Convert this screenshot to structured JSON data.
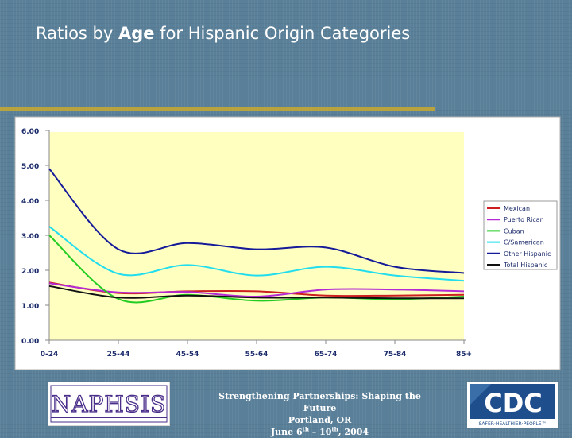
{
  "slide": {
    "title_before": "Ratios by ",
    "title_emph": "Age",
    "title_after": " for Hispanic Origin Categories",
    "footer_line1": "Strengthening Partnerships: Shaping the Future",
    "footer_line2": "Portland, OR",
    "footer_line3_a": "June 6",
    "footer_line3_sup1": "th",
    "footer_line3_b": " – 10",
    "footer_line3_sup2": "th",
    "footer_line3_c": ", 2004",
    "logo_left_text": "NAPHSIS",
    "logo_right_text": "CDC",
    "logo_right_tagline": "SAFER·HEALTHIER·PEOPLE™"
  },
  "colors": {
    "background": "#5a7f98",
    "plot_area": "#ffffc0",
    "chart_frame": "#ffffff",
    "gold_rule": "#b8a33e",
    "cdc_blue": "#1f4e8c",
    "naphsis_purple": "#4a2e8a"
  },
  "chart_data": {
    "type": "line",
    "title": "",
    "xlabel": "",
    "ylabel": "",
    "ylim": [
      0,
      6
    ],
    "yticks": [
      "0.00",
      "1.00",
      "2.00",
      "3.00",
      "4.00",
      "5.00",
      "6.00"
    ],
    "categories": [
      "0-24",
      "25-44",
      "45-54",
      "55-64",
      "65-74",
      "75-84",
      "85+"
    ],
    "grid": false,
    "legend_position": "right",
    "series": [
      {
        "name": "Mexican",
        "color": "#cc1f1f",
        "values": [
          1.65,
          1.35,
          1.4,
          1.4,
          1.28,
          1.28,
          1.3
        ]
      },
      {
        "name": "Puerto Rican",
        "color": "#b42ad4",
        "values": [
          1.63,
          1.37,
          1.38,
          1.25,
          1.45,
          1.45,
          1.4
        ]
      },
      {
        "name": "Cuban",
        "color": "#22cc22",
        "values": [
          3.0,
          1.18,
          1.3,
          1.13,
          1.22,
          1.17,
          1.25
        ]
      },
      {
        "name": "C/Samerican",
        "color": "#22ddee",
        "values": [
          3.25,
          1.9,
          2.15,
          1.85,
          2.1,
          1.85,
          1.7
        ]
      },
      {
        "name": "Other Hispanic",
        "color": "#151a99",
        "values": [
          4.9,
          2.6,
          2.78,
          2.6,
          2.65,
          2.1,
          1.92
        ]
      },
      {
        "name": "Total Hispanic",
        "color": "#111111",
        "values": [
          1.55,
          1.22,
          1.28,
          1.22,
          1.22,
          1.2,
          1.2
        ]
      }
    ]
  }
}
